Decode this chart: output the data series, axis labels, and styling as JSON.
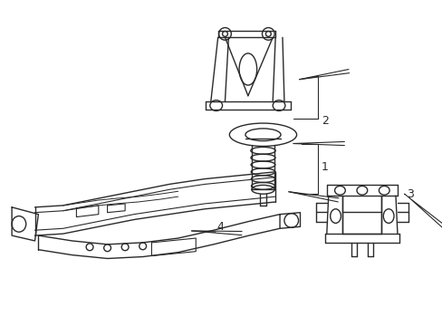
{
  "bg_color": "#ffffff",
  "line_color": "#2a2a2a",
  "line_width": 1.0,
  "figsize": [
    4.89,
    3.6
  ],
  "dpi": 100,
  "label_fontsize": 9
}
